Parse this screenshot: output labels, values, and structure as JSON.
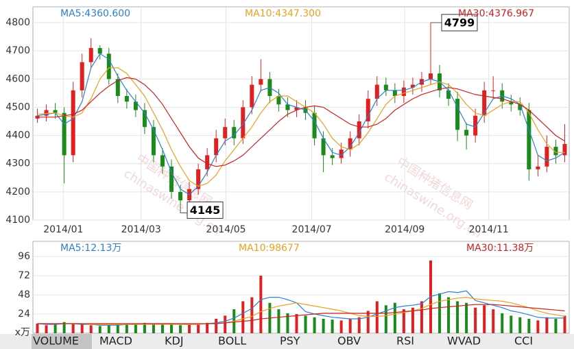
{
  "chart_data": [
    {
      "type": "candlestick",
      "ylim": [
        4100,
        4856
      ],
      "yticks": [
        4100,
        4200,
        4300,
        4400,
        4500,
        4600,
        4700,
        4800
      ],
      "xlim": [
        -0.5,
        59.5
      ],
      "xticks": [
        {
          "value": 2.9,
          "label": "2014/01"
        },
        {
          "value": 11.6,
          "label": "2014/03"
        },
        {
          "value": 21.1,
          "label": "2014/05"
        },
        {
          "value": 30.7,
          "label": "2014/07"
        },
        {
          "value": 41.1,
          "label": "2014/09"
        },
        {
          "value": 50.5,
          "label": "2014/11"
        }
      ],
      "grid": true,
      "color_up": "#e02020",
      "color_down": "#1a8a1a",
      "open": [
        4460,
        4470,
        4490,
        4480,
        4330,
        4560,
        4660,
        4710,
        4690,
        4600,
        4540,
        4520,
        4490,
        4430,
        4330,
        4290,
        4200,
        4170,
        4210,
        4280,
        4330,
        4390,
        4430,
        4390,
        4500,
        4580,
        4600,
        4540,
        4510,
        4490,
        4500,
        4480,
        4390,
        4330,
        4320,
        4350,
        4390,
        4450,
        4530,
        4580,
        4560,
        4540,
        4570,
        4580,
        4600,
        4620,
        4560,
        4530,
        4420,
        4400,
        4470,
        4560,
        4560,
        4520,
        4510,
        4490,
        4280,
        4290,
        4360,
        4330
      ],
      "high": [
        4495,
        4510,
        4515,
        4500,
        4590,
        4690,
        4745,
        4720,
        4710,
        4620,
        4565,
        4545,
        4515,
        4455,
        4355,
        4315,
        4225,
        4235,
        4300,
        4355,
        4420,
        4460,
        4455,
        4525,
        4610,
        4670,
        4625,
        4565,
        4535,
        4525,
        4525,
        4505,
        4415,
        4355,
        4375,
        4415,
        4475,
        4560,
        4610,
        4605,
        4585,
        4595,
        4605,
        4625,
        4799,
        4650,
        4585,
        4555,
        4445,
        4495,
        4590,
        4610,
        4585,
        4545,
        4535,
        4515,
        4330,
        4400,
        4385,
        4440
      ],
      "low": [
        4445,
        4450,
        4460,
        4230,
        4305,
        4535,
        4640,
        4670,
        4580,
        4515,
        4495,
        4465,
        4405,
        4305,
        4265,
        4175,
        4145,
        4150,
        4190,
        4255,
        4305,
        4365,
        4365,
        4370,
        4475,
        4555,
        4515,
        4485,
        4465,
        4465,
        4455,
        4365,
        4270,
        4295,
        4300,
        4325,
        4365,
        4425,
        4505,
        4540,
        4515,
        4515,
        4545,
        4555,
        4580,
        4535,
        4505,
        4380,
        4350,
        4375,
        4445,
        4530,
        4495,
        4485,
        4470,
        4240,
        4255,
        4270,
        4300,
        4305
      ],
      "close": [
        4470,
        4490,
        4480,
        4330,
        4560,
        4660,
        4710,
        4690,
        4600,
        4540,
        4520,
        4490,
        4430,
        4330,
        4290,
        4200,
        4170,
        4210,
        4280,
        4330,
        4390,
        4430,
        4390,
        4500,
        4580,
        4600,
        4540,
        4510,
        4490,
        4500,
        4480,
        4390,
        4330,
        4320,
        4350,
        4390,
        4450,
        4530,
        4580,
        4560,
        4540,
        4570,
        4580,
        4600,
        4620,
        4560,
        4530,
        4420,
        4400,
        4470,
        4560,
        4560,
        4520,
        4510,
        4490,
        4280,
        4290,
        4360,
        4330,
        4370
      ],
      "max_label": "4799",
      "min_label": "4145",
      "series": [
        {
          "name": "MA5:4360.600",
          "color": "#2a7fd4",
          "values": [
            4470,
            4475,
            4480,
            4440,
            4460,
            4520,
            4640,
            4690,
            4670,
            4610,
            4560,
            4520,
            4480,
            4420,
            4350,
            4270,
            4210,
            4190,
            4220,
            4270,
            4330,
            4380,
            4400,
            4440,
            4490,
            4560,
            4570,
            4550,
            4510,
            4500,
            4490,
            4450,
            4390,
            4340,
            4330,
            4360,
            4410,
            4470,
            4530,
            4560,
            4560,
            4560,
            4570,
            4590,
            4600,
            4590,
            4560,
            4500,
            4440,
            4430,
            4480,
            4530,
            4540,
            4530,
            4510,
            4420,
            4330,
            4310,
            4320,
            4340
          ]
        },
        {
          "name": "MA10:4347.300",
          "color": "#e8a020",
          "values": [
            4475,
            4478,
            4480,
            4470,
            4465,
            4480,
            4530,
            4600,
            4640,
            4640,
            4620,
            4580,
            4540,
            4480,
            4420,
            4350,
            4290,
            4240,
            4220,
            4230,
            4260,
            4310,
            4350,
            4390,
            4430,
            4480,
            4520,
            4540,
            4540,
            4520,
            4500,
            4480,
            4440,
            4390,
            4360,
            4350,
            4370,
            4410,
            4460,
            4510,
            4540,
            4550,
            4560,
            4570,
            4580,
            4590,
            4580,
            4550,
            4510,
            4480,
            4470,
            4490,
            4510,
            4520,
            4520,
            4480,
            4420,
            4370,
            4340,
            4340
          ]
        },
        {
          "name": "MA30:4376.967",
          "color": "#cc2020",
          "values": [
            4465,
            4465,
            4465,
            4470,
            4475,
            4490,
            4520,
            4550,
            4575,
            4595,
            4605,
            4600,
            4580,
            4550,
            4510,
            4460,
            4410,
            4360,
            4320,
            4300,
            4290,
            4295,
            4310,
            4330,
            4360,
            4390,
            4420,
            4450,
            4475,
            4490,
            4500,
            4505,
            4500,
            4480,
            4460,
            4440,
            4430,
            4430,
            4440,
            4460,
            4490,
            4510,
            4530,
            4545,
            4555,
            4565,
            4570,
            4565,
            4555,
            4545,
            4540,
            4535,
            4530,
            4520,
            4510,
            4490,
            4460,
            4430,
            4400,
            4380
          ]
        }
      ]
    },
    {
      "type": "bar",
      "unit_label": "x万",
      "ylim": [
        0,
        115
      ],
      "yticks": [
        24,
        48,
        72,
        96
      ],
      "xlim": [
        -0.5,
        59.5
      ],
      "grid": true,
      "values": [
        12,
        10,
        11,
        14,
        12,
        11,
        10,
        9,
        10,
        11,
        12,
        12,
        13,
        12,
        11,
        12,
        10,
        11,
        12,
        13,
        18,
        22,
        30,
        40,
        45,
        72,
        38,
        30,
        25,
        24,
        22,
        20,
        18,
        17,
        16,
        18,
        20,
        28,
        40,
        35,
        38,
        30,
        32,
        40,
        91,
        50,
        45,
        40,
        38,
        32,
        35,
        30,
        25,
        22,
        20,
        18,
        16,
        20,
        18,
        22
      ],
      "series": [
        {
          "name": "MA5:12.13万",
          "color": "#2a7fd4",
          "values": [
            12,
            11,
            11,
            12,
            12,
            11,
            11,
            10,
            10,
            10,
            11,
            11,
            12,
            12,
            12,
            12,
            11,
            11,
            11,
            12,
            13,
            15,
            19,
            25,
            31,
            42,
            45,
            45,
            42,
            38,
            27,
            24,
            22,
            20,
            19,
            18,
            18,
            20,
            24,
            28,
            32,
            34,
            35,
            37,
            46,
            49,
            52,
            51,
            53,
            41,
            38,
            35,
            32,
            28,
            26,
            23,
            20,
            19,
            19,
            19
          ]
        },
        {
          "name": "MA10:98677",
          "color": "#e8a020",
          "values": [
            12,
            12,
            12,
            12,
            12,
            12,
            11,
            11,
            11,
            11,
            11,
            11,
            11,
            11,
            11,
            11,
            11,
            11,
            11,
            12,
            12,
            13,
            15,
            18,
            21,
            27,
            31,
            34,
            36,
            38,
            36,
            34,
            32,
            30,
            28,
            25,
            22,
            21,
            21,
            22,
            24,
            26,
            28,
            31,
            36,
            40,
            42,
            44,
            45,
            43,
            42,
            41,
            40,
            38,
            35,
            32,
            28,
            25,
            23,
            21
          ]
        },
        {
          "name": "MA30:11.38万",
          "color": "#cc2020",
          "values": [
            12,
            12,
            12,
            12,
            12,
            12,
            12,
            12,
            12,
            12,
            12,
            12,
            12,
            12,
            12,
            12,
            12,
            12,
            12,
            12,
            12,
            13,
            14,
            15,
            16,
            18,
            19,
            20,
            21,
            22,
            23,
            24,
            25,
            25,
            25,
            25,
            25,
            25,
            25,
            25,
            26,
            27,
            28,
            29,
            31,
            32,
            33,
            34,
            35,
            36,
            36,
            36,
            35,
            34,
            33,
            32,
            31,
            30,
            29,
            28
          ]
        }
      ]
    }
  ],
  "watermark": [
    "中国种猪信息网",
    "chinaswine.org.cn"
  ],
  "tabs": [
    "VOLUME",
    "MACD",
    "KDJ",
    "BOLL",
    "PSY",
    "OBV",
    "RSI",
    "WVAD",
    "CCI"
  ]
}
